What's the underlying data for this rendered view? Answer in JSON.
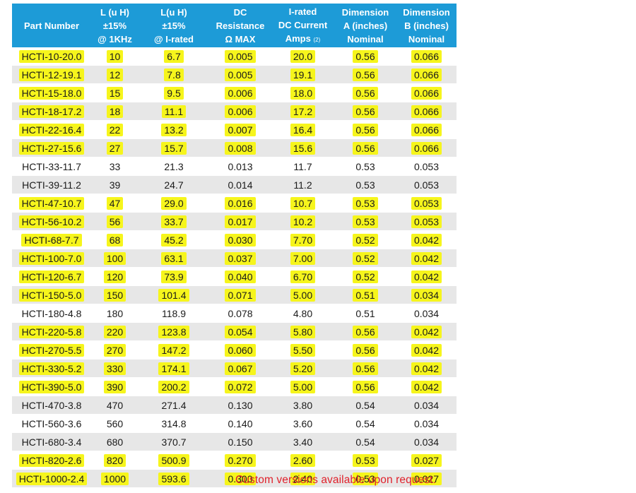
{
  "columns": [
    {
      "lines": [
        "Part Number"
      ]
    },
    {
      "lines": [
        "L (u H)",
        "±15%",
        "@ 1KHz"
      ]
    },
    {
      "lines": [
        "L(u H)",
        "±15%",
        "@ I-rated"
      ]
    },
    {
      "lines": [
        "DC",
        "Resistance",
        "Ω MAX"
      ]
    },
    {
      "lines": [
        "I-rated",
        "DC Current",
        "Amps"
      ],
      "note": "(2)"
    },
    {
      "lines": [
        "Dimension",
        "A (inches)",
        "Nominal"
      ]
    },
    {
      "lines": [
        "Dimension",
        "B (inches)",
        "Nominal"
      ]
    }
  ],
  "rows": [
    {
      "cells": [
        "HCTI-10-20.0",
        "10",
        "6.7",
        "0.005",
        "20.0",
        "0.56",
        "0.066"
      ],
      "highlighted": true
    },
    {
      "cells": [
        "HCTI-12-19.1",
        "12",
        "7.8",
        "0.005",
        "19.1",
        "0.56",
        "0.066"
      ],
      "highlighted": true
    },
    {
      "cells": [
        "HCTI-15-18.0",
        "15",
        "9.5",
        "0.006",
        "18.0",
        "0.56",
        "0.066"
      ],
      "highlighted": true
    },
    {
      "cells": [
        "HCTI-18-17.2",
        "18",
        "11.1",
        "0.006",
        "17.2",
        "0.56",
        "0.066"
      ],
      "highlighted": true
    },
    {
      "cells": [
        "HCTI-22-16.4",
        "22",
        "13.2",
        "0.007",
        "16.4",
        "0.56",
        "0.066"
      ],
      "highlighted": true
    },
    {
      "cells": [
        "HCTI-27-15.6",
        "27",
        "15.7",
        "0.008",
        "15.6",
        "0.56",
        "0.066"
      ],
      "highlighted": true
    },
    {
      "cells": [
        "HCTI-33-11.7",
        "33",
        "21.3",
        "0.013",
        "11.7",
        "0.53",
        "0.053"
      ],
      "highlighted": false
    },
    {
      "cells": [
        "HCTI-39-11.2",
        "39",
        "24.7",
        "0.014",
        "11.2",
        "0.53",
        "0.053"
      ],
      "highlighted": false
    },
    {
      "cells": [
        "HCTI-47-10.7",
        "47",
        "29.0",
        "0.016",
        "10.7",
        "0.53",
        "0.053"
      ],
      "highlighted": true
    },
    {
      "cells": [
        "HCTI-56-10.2",
        "56",
        "33.7",
        "0.017",
        "10.2",
        "0.53",
        "0.053"
      ],
      "highlighted": true
    },
    {
      "cells": [
        "HCTI-68-7.7",
        "68",
        "45.2",
        "0.030",
        "7.70",
        "0.52",
        "0.042"
      ],
      "highlighted": true
    },
    {
      "cells": [
        "HCTI-100-7.0",
        "100",
        "63.1",
        "0.037",
        "7.00",
        "0.52",
        "0.042"
      ],
      "highlighted": true
    },
    {
      "cells": [
        "HCTI-120-6.7",
        "120",
        "73.9",
        "0.040",
        "6.70",
        "0.52",
        "0.042"
      ],
      "highlighted": true
    },
    {
      "cells": [
        "HCTI-150-5.0",
        "150",
        "101.4",
        "0.071",
        "5.00",
        "0.51",
        "0.034"
      ],
      "highlighted": true
    },
    {
      "cells": [
        "HCTI-180-4.8",
        "180",
        "118.9",
        "0.078",
        "4.80",
        "0.51",
        "0.034"
      ],
      "highlighted": false
    },
    {
      "cells": [
        "HCTI-220-5.8",
        "220",
        "123.8",
        "0.054",
        "5.80",
        "0.56",
        "0.042"
      ],
      "highlighted": true
    },
    {
      "cells": [
        "HCTI-270-5.5",
        "270",
        "147.2",
        "0.060",
        "5.50",
        "0.56",
        "0.042"
      ],
      "highlighted": true
    },
    {
      "cells": [
        "HCTI-330-5.2",
        "330",
        "174.1",
        "0.067",
        "5.20",
        "0.56",
        "0.042"
      ],
      "highlighted": true
    },
    {
      "cells": [
        "HCTI-390-5.0",
        "390",
        "200.2",
        "0.072",
        "5.00",
        "0.56",
        "0.042"
      ],
      "highlighted": true
    },
    {
      "cells": [
        "HCTI-470-3.8",
        "470",
        "271.4",
        "0.130",
        "3.80",
        "0.54",
        "0.034"
      ],
      "highlighted": false
    },
    {
      "cells": [
        "HCTI-560-3.6",
        "560",
        "314.8",
        "0.140",
        "3.60",
        "0.54",
        "0.034"
      ],
      "highlighted": false
    },
    {
      "cells": [
        "HCTI-680-3.4",
        "680",
        "370.7",
        "0.150",
        "3.40",
        "0.54",
        "0.034"
      ],
      "highlighted": false
    },
    {
      "cells": [
        "HCTI-820-2.6",
        "820",
        "500.9",
        "0.270",
        "2.60",
        "0.53",
        "0.027"
      ],
      "highlighted": true
    },
    {
      "cells": [
        "HCTI-1000-2.4",
        "1000",
        "593.6",
        "0.300",
        "2.40",
        "0.53",
        "0.027"
      ],
      "highlighted": true
    }
  ],
  "footnote": "Custom versions available upon request.",
  "colors": {
    "header_bg": "#1d9bd7",
    "header_text": "#ffffff",
    "row_alt_bg": "#e7e7e7",
    "highlight": "#f6f51c",
    "footnote_text": "#e0212b"
  }
}
